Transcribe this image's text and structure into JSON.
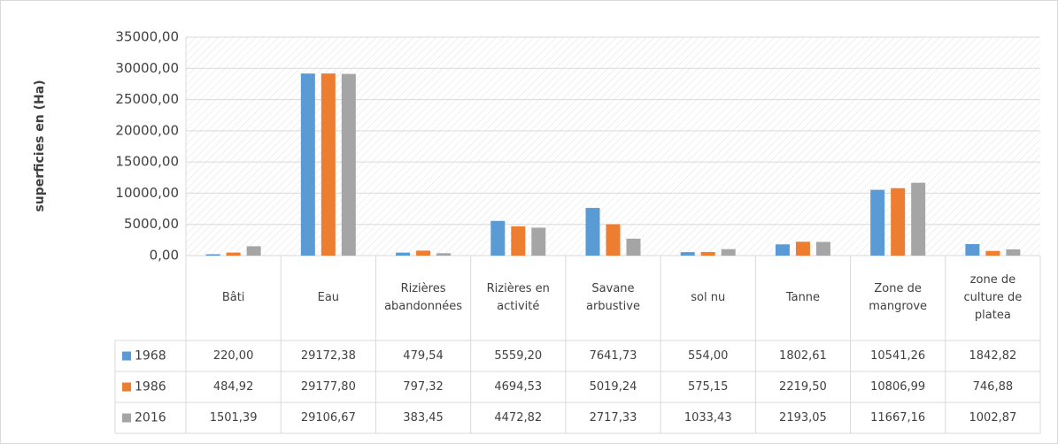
{
  "chart_data": {
    "type": "bar",
    "y_label": "superficies en (Ha)",
    "categories": [
      "Bâti",
      "Eau",
      "Rizières abandonnées",
      "Rizières en activité",
      "Savane arbustive",
      "sol nu",
      "Tanne",
      "Zone de mangrove",
      "zone de culture de platea"
    ],
    "series": [
      {
        "name": "1968",
        "color": "#5b9bd5",
        "values": [
          220,
          29172.38,
          479.54,
          5559.2,
          7641.73,
          554,
          1802.61,
          10541.26,
          1842.82
        ],
        "value_labels": [
          "220,00",
          "29172,38",
          "479,54",
          "5559,20",
          "7641,73",
          "554,00",
          "1802,61",
          "10541,26",
          "1842,82"
        ]
      },
      {
        "name": "1986",
        "color": "#ed7d31",
        "values": [
          484.92,
          29177.8,
          797.32,
          4694.53,
          5019.24,
          575.15,
          2219.5,
          10806.99,
          746.88
        ],
        "value_labels": [
          "484,92",
          "29177,80",
          "797,32",
          "4694,53",
          "5019,24",
          "575,15",
          "2219,50",
          "10806,99",
          "746,88"
        ]
      },
      {
        "name": "2016",
        "color": "#a5a5a5",
        "values": [
          1501.39,
          29106.67,
          383.45,
          4472.82,
          2717.33,
          1033.43,
          2193.05,
          11667.16,
          1002.87
        ],
        "value_labels": [
          "1501,39",
          "29106,67",
          "383,45",
          "4472,82",
          "2717,33",
          "1033,43",
          "2193,05",
          "11667,16",
          "1002,87"
        ]
      }
    ],
    "ylim": [
      0,
      35000
    ],
    "yticks": [
      {
        "value": 0,
        "label": "0,00"
      },
      {
        "value": 5000,
        "label": "5000,00"
      },
      {
        "value": 10000,
        "label": "10000,00"
      },
      {
        "value": 15000,
        "label": "15000,00"
      },
      {
        "value": 20000,
        "label": "20000,00"
      },
      {
        "value": 25000,
        "label": "25000,00"
      },
      {
        "value": 30000,
        "label": "30000,00"
      },
      {
        "value": 35000,
        "label": "35000,00"
      }
    ],
    "grid": true
  }
}
